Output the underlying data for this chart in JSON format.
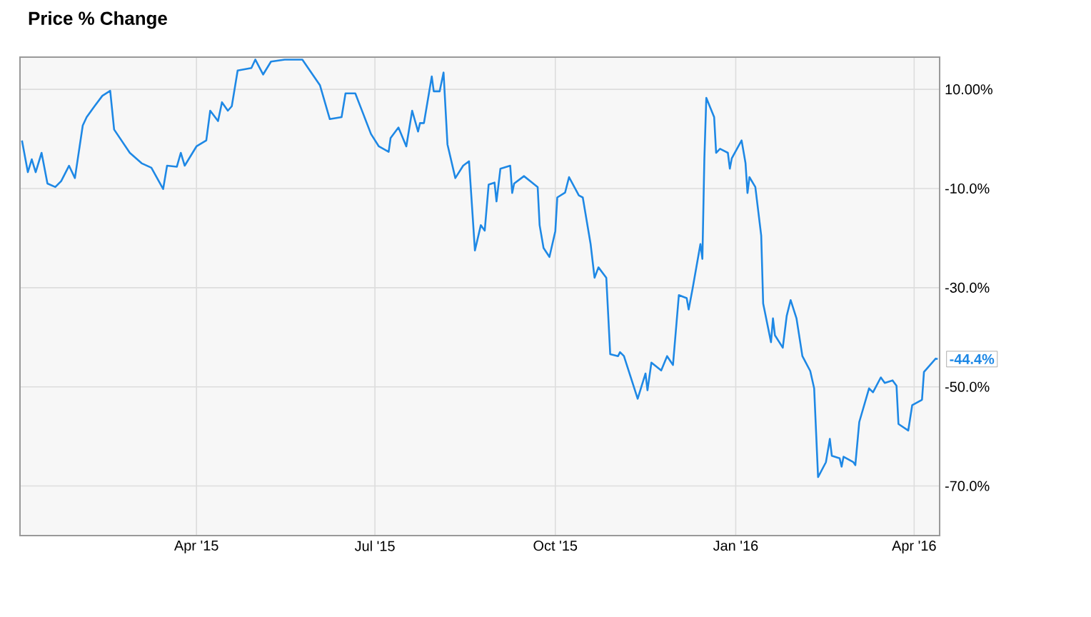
{
  "chart_data": {
    "type": "line",
    "title": "Price % Change",
    "x": [
      "2015-01-02",
      "2015-01-05",
      "2015-01-07",
      "2015-01-09",
      "2015-01-12",
      "2015-01-15",
      "2015-01-19",
      "2015-01-22",
      "2015-01-26",
      "2015-01-29",
      "2015-02-02",
      "2015-02-04",
      "2015-02-08",
      "2015-02-12",
      "2015-02-16",
      "2015-02-18",
      "2015-02-26",
      "2015-03-04",
      "2015-03-09",
      "2015-03-15",
      "2015-03-17",
      "2015-03-22",
      "2015-03-24",
      "2015-03-26",
      "2015-04-01",
      "2015-04-06",
      "2015-04-08",
      "2015-04-12",
      "2015-04-14",
      "2015-04-17",
      "2015-04-19",
      "2015-04-22",
      "2015-04-29",
      "2015-05-01",
      "2015-05-05",
      "2015-05-09",
      "2015-05-16",
      "2015-05-25",
      "2015-06-03",
      "2015-06-08",
      "2015-06-14",
      "2015-06-16",
      "2015-06-21",
      "2015-06-29",
      "2015-07-03",
      "2015-07-08",
      "2015-07-09",
      "2015-07-13",
      "2015-07-17",
      "2015-07-20",
      "2015-07-23",
      "2015-07-24",
      "2015-07-26",
      "2015-07-30",
      "2015-07-31",
      "2015-08-03",
      "2015-08-05",
      "2015-08-07",
      "2015-08-11",
      "2015-08-15",
      "2015-08-18",
      "2015-08-21",
      "2015-08-24",
      "2015-08-26",
      "2015-08-28",
      "2015-08-31",
      "2015-09-01",
      "2015-09-03",
      "2015-09-08",
      "2015-09-09",
      "2015-09-10",
      "2015-09-15",
      "2015-09-22",
      "2015-09-23",
      "2015-09-25",
      "2015-09-28",
      "2015-10-01",
      "2015-10-02",
      "2015-10-06",
      "2015-10-08",
      "2015-10-13",
      "2015-10-15",
      "2015-10-19",
      "2015-10-21",
      "2015-10-23",
      "2015-10-27",
      "2015-10-29",
      "2015-11-02",
      "2015-11-03",
      "2015-11-05",
      "2015-11-12",
      "2015-11-16",
      "2015-11-17",
      "2015-11-19",
      "2015-11-24",
      "2015-11-27",
      "2015-11-30",
      "2015-12-03",
      "2015-12-07",
      "2015-12-08",
      "2015-12-10",
      "2015-12-14",
      "2015-12-15",
      "2015-12-16",
      "2015-12-17",
      "2015-12-21",
      "2015-12-22",
      "2015-12-24",
      "2015-12-28",
      "2015-12-29",
      "2015-12-30",
      "2016-01-04",
      "2016-01-06",
      "2016-01-07",
      "2016-01-08",
      "2016-01-11",
      "2016-01-14",
      "2016-01-15",
      "2016-01-19",
      "2016-01-20",
      "2016-01-21",
      "2016-01-25",
      "2016-01-27",
      "2016-01-29",
      "2016-02-01",
      "2016-02-04",
      "2016-02-08",
      "2016-02-10",
      "2016-02-12",
      "2016-02-16",
      "2016-02-18",
      "2016-02-19",
      "2016-02-23",
      "2016-02-24",
      "2016-02-25",
      "2016-03-01",
      "2016-03-02",
      "2016-03-04",
      "2016-03-09",
      "2016-03-11",
      "2016-03-15",
      "2016-03-17",
      "2016-03-21",
      "2016-03-23",
      "2016-03-24",
      "2016-03-29",
      "2016-03-31",
      "2016-04-05",
      "2016-04-06",
      "2016-04-12",
      "2016-04-13"
    ],
    "series": [
      {
        "color": "#1e88e5",
        "values": [
          -0.3,
          -6.7,
          -4.1,
          -6.7,
          -2.8,
          -9,
          -9.7,
          -8.5,
          -5.4,
          -7.9,
          2.7,
          4.4,
          6.6,
          8.7,
          9.7,
          1.9,
          -2.8,
          -4.9,
          -5.8,
          -10.1,
          -5.4,
          -5.6,
          -2.8,
          -5.4,
          -1.5,
          -0.3,
          5.7,
          3.6,
          7.4,
          5.7,
          6.6,
          13.8,
          14.3,
          16,
          13,
          15.6,
          16,
          16,
          10.8,
          4,
          4.4,
          9.2,
          9.2,
          1,
          -1.5,
          -2.6,
          0.2,
          2.3,
          -1.5,
          5.7,
          1.5,
          3.2,
          3.2,
          12.6,
          9.6,
          9.6,
          13.4,
          -1.1,
          -7.9,
          -5.4,
          -4.5,
          -22.5,
          -17.4,
          -18.5,
          -9.2,
          -8.8,
          -12.6,
          -6,
          -5.4,
          -10.9,
          -9,
          -7.5,
          -9.7,
          -17.4,
          -22,
          -23.8,
          -18.6,
          -11.8,
          -10.8,
          -7.7,
          -11.4,
          -11.8,
          -21.2,
          -28,
          -25.9,
          -28,
          -43.4,
          -43.8,
          -43,
          -43.8,
          -52.4,
          -47.3,
          -50.7,
          -45.1,
          -46.7,
          -43.8,
          -45.6,
          -31.5,
          -32.1,
          -34.4,
          -30.2,
          -21.2,
          -24.2,
          -4.1,
          8.3,
          4.4,
          -2.8,
          -2,
          -2.8,
          -6,
          -3.9,
          -0.3,
          -4.9,
          -10.9,
          -7.7,
          -9.7,
          -19.5,
          -33.2,
          -41,
          -36.2,
          -39.6,
          -42.1,
          -35.7,
          -32.5,
          -36.2,
          -43.8,
          -46.8,
          -50.3,
          -68.2,
          -65.2,
          -60.5,
          -63.9,
          -64.4,
          -66.1,
          -64.1,
          -65.2,
          -65.8,
          -57.1,
          -50.3,
          -51.1,
          -48.1,
          -49.2,
          -48.7,
          -49.8,
          -57.5,
          -58.8,
          -53.7,
          -52.6,
          -47,
          -44.3,
          -44.4
        ]
      }
    ],
    "xlim": [
      "2015-01-01",
      "2016-04-14"
    ],
    "xticks": [
      {
        "value": "2015-04-01",
        "label": "Apr '15"
      },
      {
        "value": "2015-07-01",
        "label": "Jul '15"
      },
      {
        "value": "2015-10-01",
        "label": "Oct '15"
      },
      {
        "value": "2016-01-01",
        "label": "Jan '16"
      },
      {
        "value": "2016-04-01",
        "label": "Apr '16"
      }
    ],
    "ylim": [
      -80,
      16.5
    ],
    "yticks": [
      {
        "value": 10,
        "label": "10.00%"
      },
      {
        "value": -10,
        "label": "-10.0%"
      },
      {
        "value": -30,
        "label": "-30.0%"
      },
      {
        "value": -50,
        "label": "-50.0%"
      },
      {
        "value": -70,
        "label": "-70.0%"
      }
    ],
    "grid": true,
    "annotations": [
      {
        "text": "-44.4%",
        "x": "2016-04-13",
        "y": -44.4
      }
    ]
  }
}
